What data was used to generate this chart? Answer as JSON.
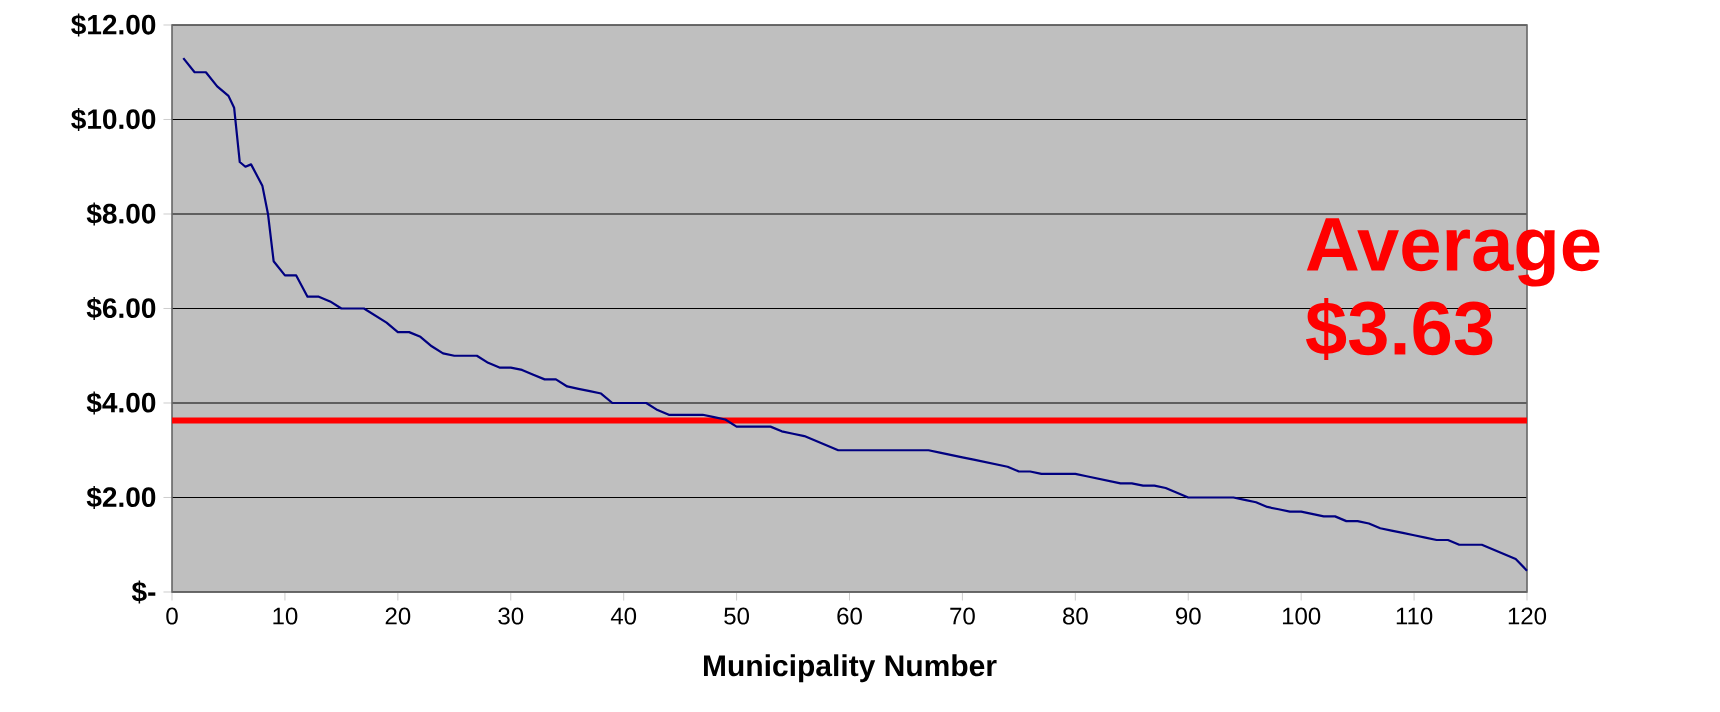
{
  "chart_data": {
    "type": "line",
    "xlabel": "Municipality Number",
    "x": [
      1,
      2,
      3,
      4,
      5,
      5.5,
      6,
      6.5,
      7,
      8,
      8.5,
      9,
      10,
      11,
      12,
      13,
      14,
      15,
      16,
      17,
      18,
      19,
      20,
      21,
      22,
      23,
      24,
      25,
      26,
      27,
      28,
      29,
      30,
      31,
      32,
      33,
      34,
      35,
      36,
      37,
      38,
      39,
      40,
      41,
      42,
      43,
      44,
      45,
      46,
      47,
      48,
      49,
      50,
      51,
      52,
      53,
      54,
      55,
      56,
      57,
      58,
      59,
      60,
      61,
      62,
      63,
      64,
      65,
      66,
      67,
      68,
      69,
      70,
      71,
      72,
      73,
      74,
      75,
      76,
      77,
      78,
      79,
      80,
      81,
      82,
      83,
      84,
      85,
      86,
      87,
      88,
      89,
      90,
      91,
      92,
      93,
      94,
      95,
      96,
      97,
      98,
      99,
      100,
      101,
      102,
      103,
      104,
      105,
      106,
      107,
      108,
      109,
      110,
      111,
      112,
      113,
      114,
      115,
      116,
      117,
      118,
      119,
      120
    ],
    "series": [
      {
        "color": "#000080",
        "values": [
          11.3,
          11.0,
          11.0,
          10.7,
          10.5,
          10.25,
          9.1,
          9.0,
          9.05,
          8.6,
          8.0,
          7.0,
          6.7,
          6.7,
          6.25,
          6.25,
          6.15,
          6.0,
          6.0,
          6.0,
          5.85,
          5.7,
          5.5,
          5.5,
          5.4,
          5.2,
          5.05,
          5.0,
          5.0,
          5.0,
          4.85,
          4.75,
          4.75,
          4.7,
          4.6,
          4.5,
          4.5,
          4.35,
          4.3,
          4.25,
          4.2,
          4.0,
          4.0,
          4.0,
          4.0,
          3.85,
          3.75,
          3.75,
          3.75,
          3.75,
          3.7,
          3.65,
          3.5,
          3.5,
          3.5,
          3.5,
          3.4,
          3.35,
          3.3,
          3.2,
          3.1,
          3.0,
          3.0,
          3.0,
          3.0,
          3.0,
          3.0,
          3.0,
          3.0,
          3.0,
          2.95,
          2.9,
          2.85,
          2.8,
          2.75,
          2.7,
          2.65,
          2.55,
          2.55,
          2.5,
          2.5,
          2.5,
          2.5,
          2.45,
          2.4,
          2.35,
          2.3,
          2.3,
          2.25,
          2.25,
          2.2,
          2.1,
          2.0,
          2.0,
          2.0,
          2.0,
          2.0,
          1.95,
          1.9,
          1.8,
          1.75,
          1.7,
          1.7,
          1.65,
          1.6,
          1.6,
          1.5,
          1.5,
          1.45,
          1.35,
          1.3,
          1.25,
          1.2,
          1.15,
          1.1,
          1.1,
          1.0,
          1.0,
          1.0,
          0.9,
          0.8,
          0.7,
          0.45
        ]
      }
    ],
    "xlim": [
      0,
      120
    ],
    "xticks": [
      0,
      10,
      20,
      30,
      40,
      50,
      60,
      70,
      80,
      90,
      100,
      110,
      120
    ],
    "ylim": [
      0,
      12
    ],
    "yticks": [
      {
        "value": 0,
        "label": "$-"
      },
      {
        "value": 2,
        "label": "$2.00"
      },
      {
        "value": 4,
        "label": "$4.00"
      },
      {
        "value": 6,
        "label": "$6.00"
      },
      {
        "value": 8,
        "label": "$8.00"
      },
      {
        "value": 10,
        "label": "$10.00"
      },
      {
        "value": 12,
        "label": "$12.00"
      }
    ],
    "grid": "y",
    "legend": false,
    "marker": "none",
    "line_style": "solid",
    "ref_lines": [
      {
        "axis": "y",
        "value": 3.63,
        "color": "#ff0000",
        "line_style": "solid"
      }
    ],
    "annotations": [
      "Average $3.63"
    ]
  }
}
